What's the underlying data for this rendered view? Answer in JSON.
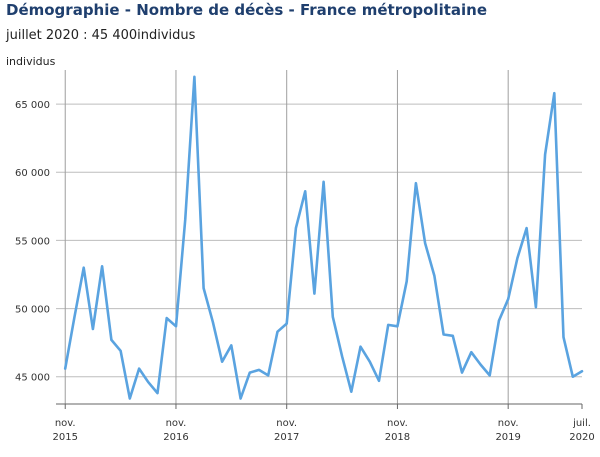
{
  "title": "Démographie - Nombre de décès - France métropolitaine",
  "subtitle": "juillet 2020 : 45 400individus",
  "chart_data": {
    "type": "line",
    "title": "Démographie - Nombre de décès - France métropolitaine",
    "subtitle": "juillet 2020 : 45 400individus",
    "ylabel": "individus",
    "xlabel": "",
    "ylim": [
      43000,
      67500
    ],
    "yticks": [
      45000,
      50000,
      55000,
      60000,
      65000
    ],
    "ytick_labels": [
      "45 000",
      "50 000",
      "55 000",
      "60 000",
      "65 000"
    ],
    "x_start": "2015-10",
    "x_end": "2020-07",
    "xticks": [
      {
        "month": "2015-11",
        "label": [
          "nov.",
          "2015"
        ]
      },
      {
        "month": "2016-11",
        "label": [
          "nov.",
          "2016"
        ]
      },
      {
        "month": "2017-11",
        "label": [
          "nov.",
          "2017"
        ]
      },
      {
        "month": "2018-11",
        "label": [
          "nov.",
          "2018"
        ]
      },
      {
        "month": "2019-11",
        "label": [
          "nov.",
          "2019"
        ]
      },
      {
        "month": "2020-07",
        "label": [
          "juil.",
          "2020"
        ]
      }
    ],
    "grid": true,
    "series": [
      {
        "color": "#5aa3e0",
        "x": [
          "2015-11",
          "2015-12",
          "2016-01",
          "2016-02",
          "2016-03",
          "2016-04",
          "2016-05",
          "2016-06",
          "2016-07",
          "2016-08",
          "2016-09",
          "2016-10",
          "2016-11",
          "2016-12",
          "2017-01",
          "2017-02",
          "2017-03",
          "2017-04",
          "2017-05",
          "2017-06",
          "2017-07",
          "2017-08",
          "2017-09",
          "2017-10",
          "2017-11",
          "2017-12",
          "2018-01",
          "2018-02",
          "2018-03",
          "2018-04",
          "2018-05",
          "2018-06",
          "2018-07",
          "2018-08",
          "2018-09",
          "2018-10",
          "2018-11",
          "2018-12",
          "2019-01",
          "2019-02",
          "2019-03",
          "2019-04",
          "2019-05",
          "2019-06",
          "2019-07",
          "2019-08",
          "2019-09",
          "2019-10",
          "2019-11",
          "2019-12",
          "2020-01",
          "2020-02",
          "2020-03",
          "2020-04",
          "2020-05",
          "2020-06",
          "2020-07"
        ],
        "values": [
          45600,
          49400,
          53000,
          48500,
          53100,
          47700,
          46900,
          43400,
          45600,
          44600,
          43800,
          49300,
          48700,
          56500,
          67000,
          51500,
          49000,
          46100,
          47300,
          43400,
          45300,
          45500,
          45100,
          48300,
          48900,
          55900,
          58600,
          51100,
          59300,
          49400,
          46500,
          43900,
          47200,
          46100,
          44700,
          48800,
          48700,
          52000,
          59200,
          54800,
          52400,
          48100,
          48000,
          45300,
          46800,
          45900,
          45100,
          49100,
          50700,
          53700,
          55900,
          50100,
          61300,
          65800,
          47900,
          45000,
          45400
        ]
      }
    ]
  }
}
